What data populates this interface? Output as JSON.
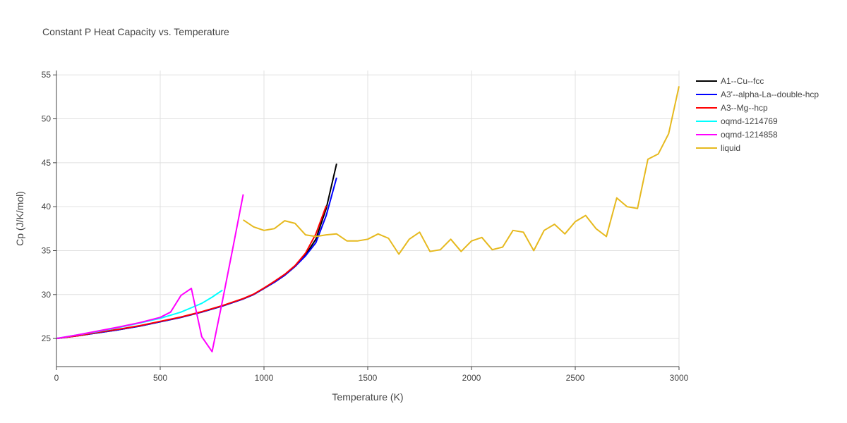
{
  "chart_data": {
    "type": "line",
    "title": "Constant P Heat Capacity vs. Temperature",
    "xlabel": "Temperature (K)",
    "ylabel": "Cp (J/K/mol)",
    "xlim": [
      0,
      3000
    ],
    "ylim": [
      21.8,
      55.5
    ],
    "xticks": [
      0,
      500,
      1000,
      1500,
      2000,
      2500,
      3000
    ],
    "yticks": [
      25,
      30,
      35,
      40,
      45,
      50,
      55
    ],
    "grid": true,
    "legend_position": "top-right",
    "series": [
      {
        "name": "A1--Cu--fcc",
        "color": "#000000",
        "x": [
          0,
          100,
          200,
          300,
          400,
          500,
          600,
          700,
          800,
          900,
          950,
          1000,
          1050,
          1100,
          1150,
          1200,
          1250,
          1300,
          1350
        ],
        "y": [
          25.0,
          25.3,
          25.65,
          26.0,
          26.4,
          26.9,
          27.4,
          28.0,
          28.7,
          29.5,
          30.0,
          30.7,
          31.4,
          32.2,
          33.2,
          34.5,
          36.3,
          39.8,
          44.9
        ]
      },
      {
        "name": "A3'--alpha-La--double-hcp",
        "color": "#0000ff",
        "x": [
          0,
          100,
          200,
          300,
          400,
          500,
          600,
          700,
          800,
          900,
          950,
          1000,
          1050,
          1100,
          1150,
          1200,
          1250,
          1300,
          1350
        ],
        "y": [
          25.0,
          25.3,
          25.65,
          26.0,
          26.4,
          26.9,
          27.4,
          28.0,
          28.7,
          29.5,
          30.0,
          30.7,
          31.4,
          32.2,
          33.2,
          34.4,
          35.9,
          39.0,
          43.3
        ]
      },
      {
        "name": "A3--Mg--hcp",
        "color": "#ff0000",
        "x": [
          0,
          100,
          200,
          300,
          400,
          500,
          600,
          700,
          800,
          900,
          950,
          1000,
          1050,
          1100,
          1150,
          1200,
          1250,
          1300
        ],
        "y": [
          25.0,
          25.3,
          25.7,
          26.05,
          26.45,
          26.95,
          27.45,
          28.05,
          28.75,
          29.55,
          30.05,
          30.75,
          31.5,
          32.3,
          33.3,
          34.7,
          36.9,
          40.1
        ]
      },
      {
        "name": "oqmd-1214769",
        "color": "#00ffff",
        "x": [
          0,
          100,
          200,
          300,
          400,
          500,
          600,
          650,
          700,
          750,
          800
        ],
        "y": [
          25.0,
          25.4,
          25.8,
          26.25,
          26.75,
          27.3,
          28.0,
          28.5,
          29.0,
          29.7,
          30.5
        ]
      },
      {
        "name": "oqmd-1214858",
        "color": "#ff00ff",
        "x": [
          0,
          100,
          200,
          300,
          400,
          500,
          550,
          600,
          650,
          700,
          750,
          800,
          850,
          900
        ],
        "y": [
          25.0,
          25.4,
          25.85,
          26.3,
          26.8,
          27.4,
          28.0,
          29.9,
          30.7,
          25.2,
          23.5,
          29.3,
          35.3,
          41.4
        ]
      },
      {
        "name": "liquid",
        "color": "#e6b91e",
        "x": [
          900,
          950,
          1000,
          1050,
          1100,
          1150,
          1200,
          1250,
          1300,
          1350,
          1400,
          1450,
          1500,
          1550,
          1600,
          1650,
          1700,
          1750,
          1800,
          1850,
          1900,
          1950,
          2000,
          2050,
          2100,
          2150,
          2200,
          2250,
          2300,
          2350,
          2400,
          2450,
          2500,
          2550,
          2600,
          2650,
          2700,
          2750,
          2800,
          2850,
          2900,
          2950,
          3000
        ],
        "y": [
          38.5,
          37.7,
          37.3,
          37.5,
          38.4,
          38.1,
          36.8,
          36.6,
          36.8,
          36.9,
          36.1,
          36.1,
          36.3,
          36.9,
          36.4,
          34.6,
          36.3,
          37.1,
          34.9,
          35.1,
          36.3,
          34.9,
          36.1,
          36.5,
          35.1,
          35.4,
          37.3,
          37.1,
          35.0,
          37.3,
          38.0,
          36.9,
          38.3,
          39.0,
          37.5,
          36.6,
          41.0,
          40.0,
          39.8,
          45.4,
          46.0,
          48.3,
          53.7
        ]
      }
    ]
  }
}
